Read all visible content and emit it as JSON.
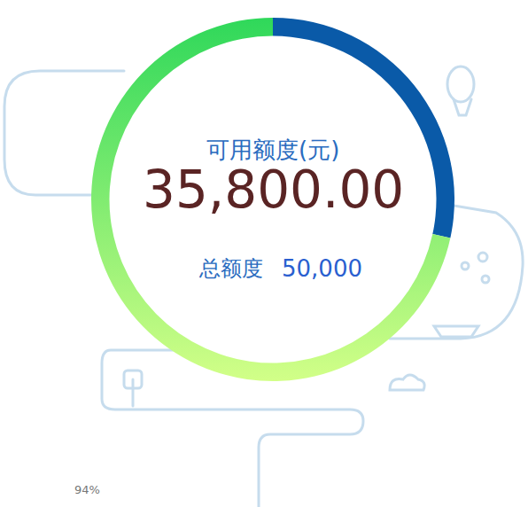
{
  "chart_data": {
    "type": "pie",
    "categories": [
      null,
      null
    ],
    "values": [
      14200,
      35800
    ],
    "colors": [
      "#0a5aa8",
      "#2fd85a"
    ],
    "center_label": "可用额度(元)",
    "center_value": {
      "value": 35800,
      "label": "35,800.00"
    },
    "total_label": "总额度",
    "total": {
      "value": 50000,
      "label": "50,000"
    },
    "tick_labels": false,
    "zoom": "94%"
  }
}
